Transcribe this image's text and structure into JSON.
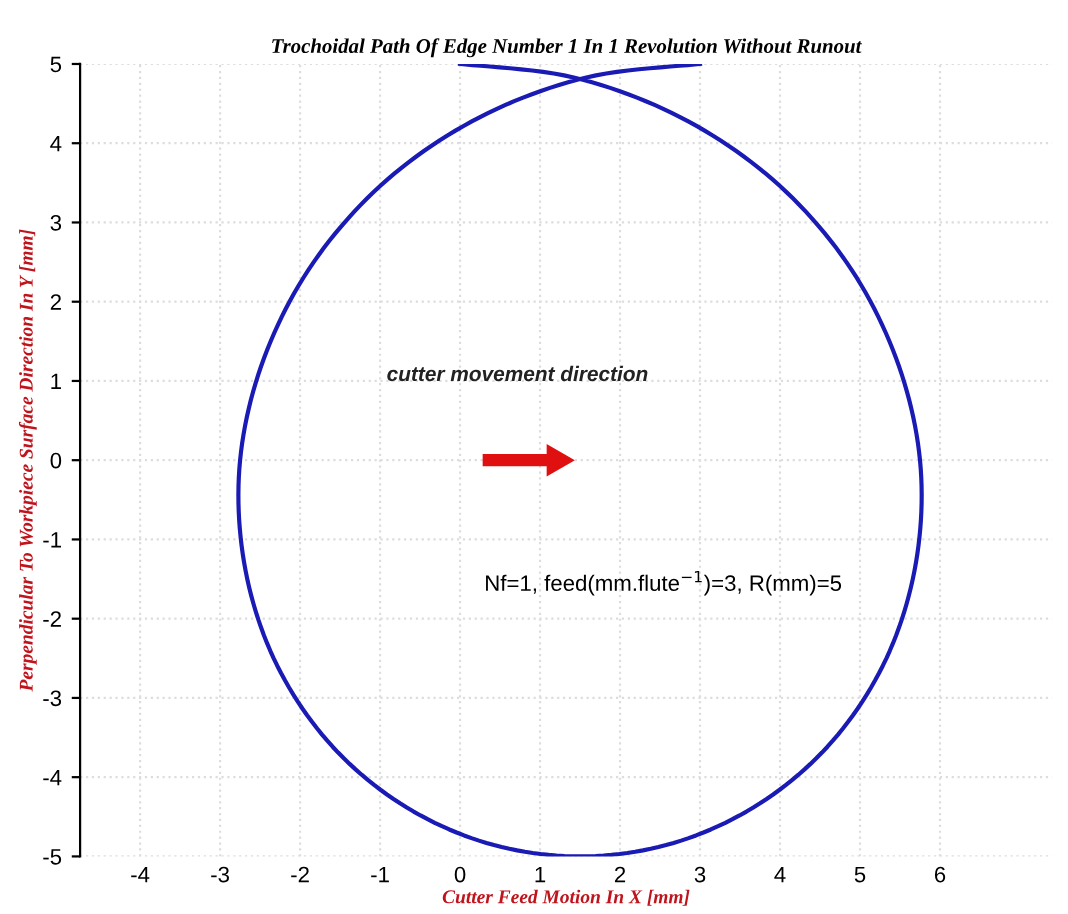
{
  "chart_data": {
    "type": "line",
    "title": "Trochoidal Path Of Edge Number 1 In 1 Revolution Without Runout",
    "xlabel": "Cutter Feed Motion In X [mm]",
    "ylabel": "Perpendicular To Workpiece Surface Direction In Y [mm]",
    "series": [
      {
        "color": "#1a1ab4",
        "x": [
          0,
          1.42,
          2.75,
          3.91,
          4.83,
          5.45,
          5.75,
          5.7,
          5.33,
          4.66,
          3.75,
          2.67,
          1.5,
          0.33,
          -0.75,
          -1.66,
          -2.33,
          -2.7,
          -2.75,
          -2.45,
          -1.83,
          -0.91,
          0.25,
          1.58,
          3
        ],
        "values": [
          5,
          4.83,
          4.33,
          3.54,
          2.5,
          1.29,
          0,
          -1.29,
          -2.5,
          -3.54,
          -4.33,
          -4.83,
          -5,
          -4.83,
          -4.33,
          -3.54,
          -2.5,
          -1.29,
          0,
          1.29,
          2.5,
          3.54,
          4.33,
          4.83,
          5
        ]
      }
    ],
    "xlim": [
      -4.75,
      7.4
    ],
    "ylim": [
      -5,
      5
    ],
    "xticks": [
      -4,
      -3,
      -2,
      -1,
      0,
      1,
      2,
      3,
      4,
      5,
      6
    ],
    "yticks": [
      -5,
      -4,
      -3,
      -2,
      -1,
      0,
      1,
      2,
      3,
      4,
      5
    ],
    "grid": true,
    "marker": "none",
    "line_style": "solid",
    "annotations": [
      "cutter movement direction",
      "Nf=1, feed(mm.flute$^{−1}$)=3, R(mm)=5"
    ]
  }
}
